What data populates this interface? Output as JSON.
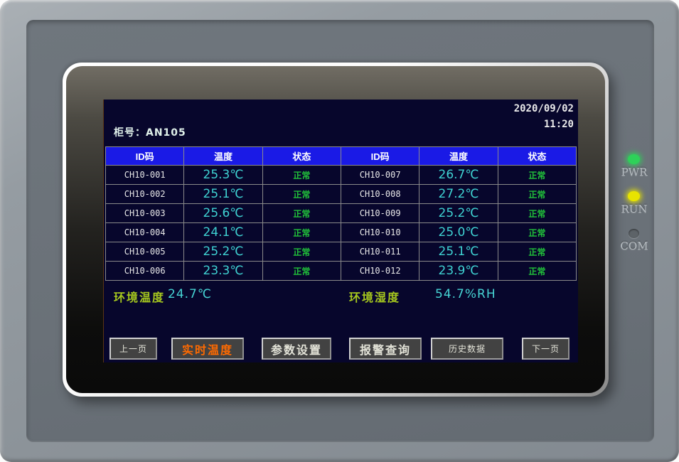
{
  "device": {
    "leds": [
      {
        "id": "pwr",
        "label": "PWR",
        "color": "#2ed159",
        "on": true
      },
      {
        "id": "run",
        "label": "RUN",
        "color": "#e8e400",
        "on": true
      },
      {
        "id": "com",
        "label": "COM",
        "color": "#5d6368",
        "on": false
      }
    ]
  },
  "screen": {
    "date": "2020/09/02",
    "time": "11:20",
    "cabinet_label": "柜号：AN105",
    "table": {
      "headers": [
        "ID码",
        "温度",
        "状态",
        "ID码",
        "温度",
        "状态"
      ],
      "rows": [
        [
          "CH10-001",
          "25.3℃",
          "正常",
          "CH10-007",
          "26.7℃",
          "正常"
        ],
        [
          "CH10-002",
          "25.1℃",
          "正常",
          "CH10-008",
          "27.2℃",
          "正常"
        ],
        [
          "CH10-003",
          "25.6℃",
          "正常",
          "CH10-009",
          "25.2℃",
          "正常"
        ],
        [
          "CH10-004",
          "24.1℃",
          "正常",
          "CH10-010",
          "25.0℃",
          "正常"
        ],
        [
          "CH10-005",
          "25.2℃",
          "正常",
          "CH10-011",
          "25.1℃",
          "正常"
        ],
        [
          "CH10-006",
          "23.3℃",
          "正常",
          "CH10-012",
          "23.9℃",
          "正常"
        ]
      ]
    },
    "env": {
      "temp_label": "环境温度",
      "temp_value": "24.7℃",
      "hum_label": "环境湿度",
      "hum_value": "54.7%RH"
    },
    "buttons": [
      {
        "label": "上一页"
      },
      {
        "label": "实时温度"
      },
      {
        "label": "参数设置"
      },
      {
        "label": "报警查询"
      },
      {
        "label": "历史数据"
      },
      {
        "label": "下一页"
      }
    ],
    "colors": {
      "lcd_background": "#07062c",
      "header_blue": "#1a1ae6",
      "temperature_cyan": "#3fd2d2",
      "status_green": "#21c13a",
      "env_label_green": "#a6c81e",
      "active_button_orange": "#ff6a00"
    }
  }
}
